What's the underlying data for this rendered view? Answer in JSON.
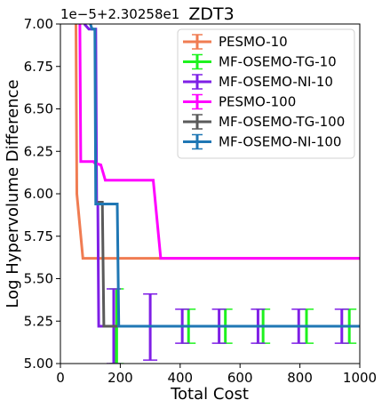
{
  "chart_data": {
    "type": "line",
    "title": "ZDT3",
    "xlabel": "Total Cost",
    "ylabel": "Log Hypervolume Difference",
    "offset_text": "1e−5+2.30258e1",
    "xlim": [
      0,
      1000
    ],
    "ylim": [
      5.0,
      7.0
    ],
    "xticks": [
      0,
      200,
      400,
      600,
      800,
      1000
    ],
    "xtick_labels": [
      "0",
      "200",
      "400",
      "600",
      "800",
      "1000"
    ],
    "yticks": [
      5.0,
      5.25,
      5.5,
      5.75,
      6.0,
      6.25,
      6.5,
      6.75,
      7.0
    ],
    "ytick_labels": [
      "5.00",
      "5.25",
      "5.50",
      "5.75",
      "6.00",
      "6.25",
      "6.50",
      "6.75",
      "7.00"
    ],
    "grid": false,
    "legend_position": "top-right",
    "series": [
      {
        "name": "PESMO-10",
        "color": "#f07c52",
        "points": [
          [
            52,
            7.0
          ],
          [
            55,
            6.0
          ],
          [
            75,
            5.62
          ],
          [
            1000,
            5.62
          ]
        ],
        "error_bars": []
      },
      {
        "name": "MF-OSEMO-TG-10",
        "color": "#1ef21e",
        "points": [
          [
            180,
            5.0
          ],
          [
            184,
            5.22
          ],
          [
            1000,
            5.22
          ]
        ],
        "error_bars": [
          {
            "x": 188,
            "y": 5.22,
            "low": 5.0,
            "high": 5.44
          },
          {
            "x": 428,
            "y": 5.22,
            "low": 5.12,
            "high": 5.32
          },
          {
            "x": 551,
            "y": 5.22,
            "low": 5.12,
            "high": 5.32
          },
          {
            "x": 677,
            "y": 5.22,
            "low": 5.12,
            "high": 5.32
          },
          {
            "x": 822,
            "y": 5.22,
            "low": 5.12,
            "high": 5.32
          },
          {
            "x": 965,
            "y": 5.22,
            "low": 5.12,
            "high": 5.32
          }
        ]
      },
      {
        "name": "MF-OSEMO-NI-10",
        "color": "#7f1fe6",
        "points": [
          [
            80,
            7.0
          ],
          [
            95,
            6.97
          ],
          [
            118,
            6.97
          ],
          [
            121,
            5.95
          ],
          [
            125,
            5.95
          ],
          [
            128,
            5.22
          ],
          [
            1000,
            5.22
          ]
        ],
        "error_bars": [
          {
            "x": 178,
            "y": 5.22,
            "low": 5.0,
            "high": 5.44
          },
          {
            "x": 300,
            "y": 5.22,
            "low": 5.02,
            "high": 5.41
          },
          {
            "x": 407,
            "y": 5.22,
            "low": 5.12,
            "high": 5.32
          },
          {
            "x": 530,
            "y": 5.22,
            "low": 5.12,
            "high": 5.32
          },
          {
            "x": 660,
            "y": 5.22,
            "low": 5.12,
            "high": 5.32
          },
          {
            "x": 796,
            "y": 5.22,
            "low": 5.12,
            "high": 5.32
          },
          {
            "x": 940,
            "y": 5.22,
            "low": 5.12,
            "high": 5.32
          }
        ]
      },
      {
        "name": "PESMO-100",
        "color": "#ff00ff",
        "points": [
          [
            65,
            7.0
          ],
          [
            68,
            6.19
          ],
          [
            110,
            6.19
          ],
          [
            115,
            6.18
          ],
          [
            135,
            6.17
          ],
          [
            150,
            6.08
          ],
          [
            175,
            6.08
          ],
          [
            310,
            6.08
          ],
          [
            335,
            5.62
          ],
          [
            1000,
            5.62
          ]
        ],
        "error_bars": []
      },
      {
        "name": "MF-OSEMO-TG-100",
        "color": "#5a5a5a",
        "points": [
          [
            125,
            5.95
          ],
          [
            140,
            5.95
          ],
          [
            145,
            5.22
          ],
          [
            1000,
            5.22
          ]
        ],
        "error_bars": []
      },
      {
        "name": "MF-OSEMO-NI-100",
        "color": "#1f77b4",
        "points": [
          [
            100,
            7.0
          ],
          [
            106,
            6.97
          ],
          [
            115,
            6.97
          ],
          [
            118,
            5.94
          ],
          [
            190,
            5.94
          ],
          [
            195,
            5.22
          ],
          [
            1000,
            5.22
          ]
        ],
        "error_bars": []
      }
    ]
  }
}
